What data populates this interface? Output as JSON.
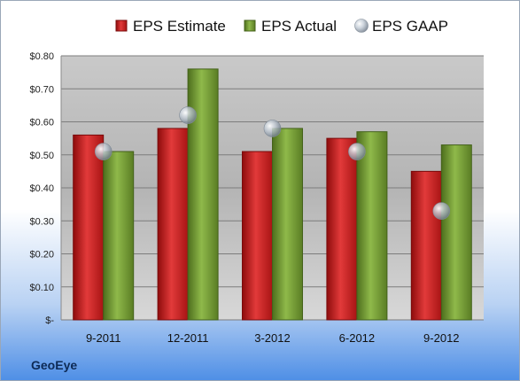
{
  "chart_data": {
    "type": "bar",
    "categories": [
      "9-2011",
      "12-2011",
      "3-2012",
      "6-2012",
      "9-2012"
    ],
    "series": [
      {
        "name": "EPS Estimate",
        "kind": "bar",
        "color": "#d42525",
        "values": [
          0.56,
          0.58,
          0.51,
          0.55,
          0.45
        ]
      },
      {
        "name": "EPS Actual",
        "kind": "bar",
        "color": "#7ba33a",
        "values": [
          0.51,
          0.76,
          0.58,
          0.57,
          0.53
        ]
      },
      {
        "name": "EPS GAAP",
        "kind": "scatter",
        "color": "#a8b4c2",
        "values": [
          0.51,
          0.62,
          0.58,
          0.51,
          0.33
        ]
      }
    ],
    "y_ticks": [
      "$-",
      "$0.10",
      "$0.20",
      "$0.30",
      "$0.40",
      "$0.50",
      "$0.60",
      "$0.70",
      "$0.80"
    ],
    "ylim": [
      0,
      0.8
    ],
    "grid": true,
    "legend_position": "top"
  },
  "brand": "GeoEye"
}
